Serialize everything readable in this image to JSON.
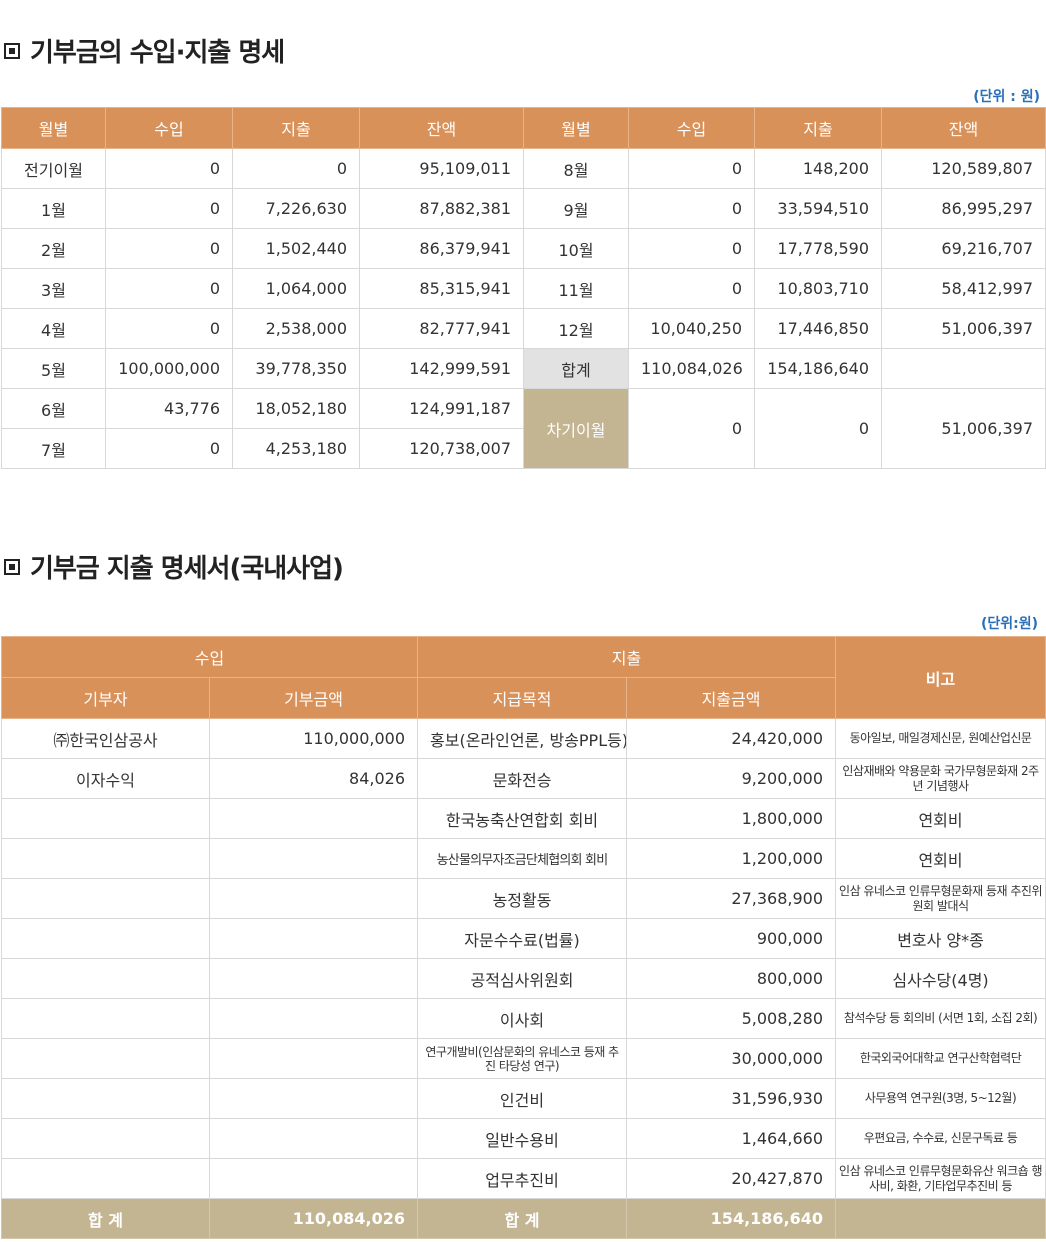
{
  "section1": {
    "title": "기부금의 수입·지출 명세",
    "unit": "(단위 : 원)",
    "headers": [
      "월별",
      "수입",
      "지출",
      "잔액",
      "월별",
      "수입",
      "지출",
      "잔액"
    ],
    "left_rows": [
      [
        "전기이월",
        "0",
        "0",
        "95,109,011"
      ],
      [
        "1월",
        "0",
        "7,226,630",
        "87,882,381"
      ],
      [
        "2월",
        "0",
        "1,502,440",
        "86,379,941"
      ],
      [
        "3월",
        "0",
        "1,064,000",
        "85,315,941"
      ],
      [
        "4월",
        "0",
        "2,538,000",
        "82,777,941"
      ],
      [
        "5월",
        "100,000,000",
        "39,778,350",
        "142,999,591"
      ],
      [
        "6월",
        "43,776",
        "18,052,180",
        "124,991,187"
      ],
      [
        "7월",
        "0",
        "4,253,180",
        "120,738,007"
      ]
    ],
    "right_rows": [
      [
        "8월",
        "0",
        "148,200",
        "120,589,807"
      ],
      [
        "9월",
        "0",
        "33,594,510",
        "86,995,297"
      ],
      [
        "10월",
        "0",
        "17,778,590",
        "69,216,707"
      ],
      [
        "11월",
        "0",
        "10,803,710",
        "58,412,997"
      ],
      [
        "12월",
        "10,040,250",
        "17,446,850",
        "51,006,397"
      ],
      [
        "합계",
        "110,084,026",
        "154,186,640",
        ""
      ]
    ],
    "carry": [
      "차기이월",
      "0",
      "0",
      "51,006,397"
    ]
  },
  "section2": {
    "title": "기부금 지출 명세서(국내사업)",
    "unit": "(단위:원)",
    "header_top": [
      "수입",
      "지출",
      "비고"
    ],
    "header_sub": [
      "기부자",
      "기부금액",
      "지급목적",
      "지출금액"
    ],
    "rows": [
      [
        "㈜한국인삼공사",
        "110,000,000",
        "홍보(온라인언론, 방송PPL등)",
        "24,420,000",
        "동아일보, 매일경제신문, 원예산업신문"
      ],
      [
        "이자수익",
        "84,026",
        "문화전승",
        "9,200,000",
        "인삼재배와 약용문화 국가무형문화재 2주년 기념행사"
      ],
      [
        "",
        "",
        "한국농축산연합회 회비",
        "1,800,000",
        "연회비"
      ],
      [
        "",
        "",
        "농산물의무자조금단체협의회 회비",
        "1,200,000",
        "연회비"
      ],
      [
        "",
        "",
        "농정활동",
        "27,368,900",
        "인삼 유네스코 인류무형문화재 등재 추진위원회 발대식"
      ],
      [
        "",
        "",
        "자문수수료(법률)",
        "900,000",
        "변호사 양*종"
      ],
      [
        "",
        "",
        "공적심사위원회",
        "800,000",
        "심사수당(4명)"
      ],
      [
        "",
        "",
        "이사회",
        "5,008,280",
        "참석수당 등 회의비 (서면 1회, 소집 2회)"
      ],
      [
        "",
        "",
        "연구개발비(인삼문화의 유네스코 등재 추진 타당성 연구)",
        "30,000,000",
        "한국외국어대학교 연구산학협력단"
      ],
      [
        "",
        "",
        "인건비",
        "31,596,930",
        "사무용역 연구원(3명, 5~12월)"
      ],
      [
        "",
        "",
        "일반수용비",
        "1,464,660",
        "우편요금, 수수료, 신문구독료 등"
      ],
      [
        "",
        "",
        "업무추진비",
        "20,427,870",
        "인삼 유네스코 인류무형문화유산 워크숍 행사비, 화환, 기타업무추진비 등"
      ]
    ],
    "total": [
      "합 계",
      "110,084,026",
      "합 계",
      "154,186,640",
      ""
    ]
  }
}
